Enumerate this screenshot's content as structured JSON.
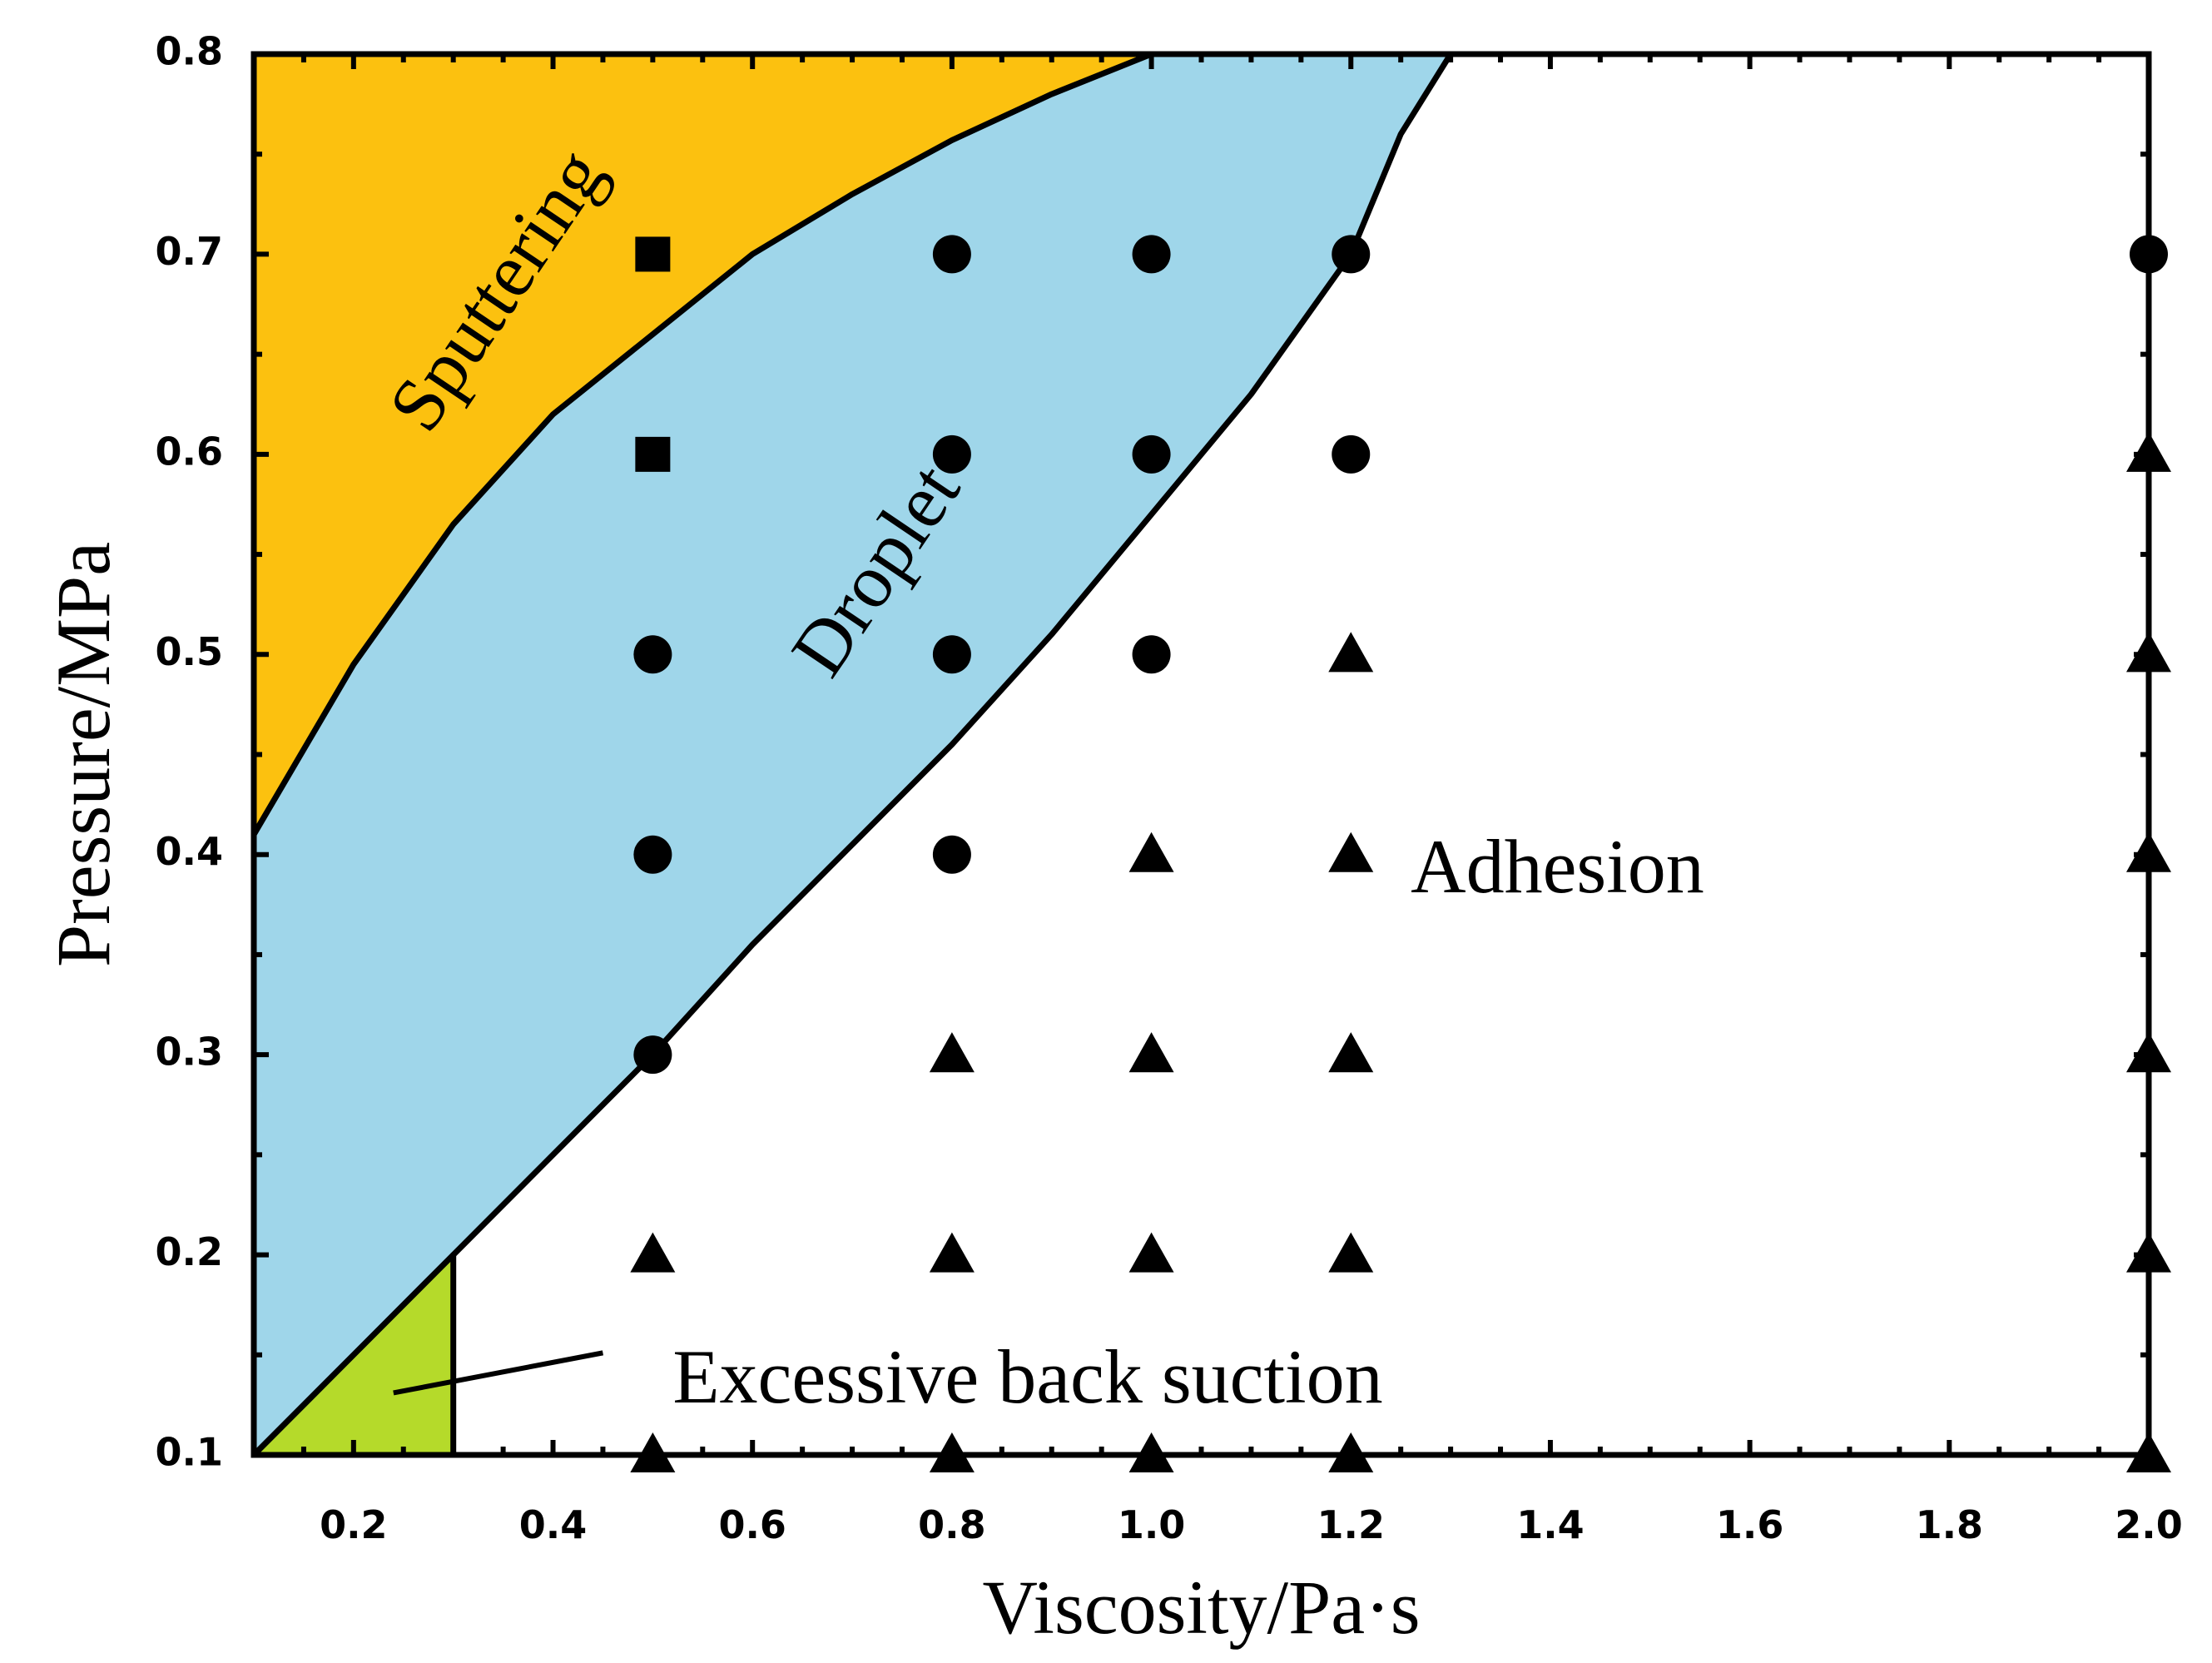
{
  "chart_data": {
    "type": "scatter",
    "title": "",
    "xlabel": "Viscosity/Pa·s",
    "ylabel": "Pressure/MPa",
    "xlim": [
      0.1,
      2.0
    ],
    "ylim": [
      0.1,
      0.8
    ],
    "x_ticks": [
      {
        "value": 0.2,
        "label": "0.2"
      },
      {
        "value": 0.4,
        "label": "0.4"
      },
      {
        "value": 0.6,
        "label": "0.6"
      },
      {
        "value": 0.8,
        "label": "0.8"
      },
      {
        "value": 1.0,
        "label": "1.0"
      },
      {
        "value": 1.2,
        "label": "1.2"
      },
      {
        "value": 1.4,
        "label": "1.4"
      },
      {
        "value": 1.6,
        "label": "1.6"
      },
      {
        "value": 1.8,
        "label": "1.8"
      },
      {
        "value": 2.0,
        "label": "2.0"
      }
    ],
    "y_ticks": [
      {
        "value": 0.1,
        "label": "0.1"
      },
      {
        "value": 0.2,
        "label": "0.2"
      },
      {
        "value": 0.3,
        "label": "0.3"
      },
      {
        "value": 0.4,
        "label": "0.4"
      },
      {
        "value": 0.5,
        "label": "0.5"
      },
      {
        "value": 0.6,
        "label": "0.6"
      },
      {
        "value": 0.7,
        "label": "0.7"
      },
      {
        "value": 0.8,
        "label": "0.8"
      }
    ],
    "regions": [
      {
        "name": "Sputtering",
        "label": "Sputtering",
        "color": "#FCC10F",
        "polygon": [
          [
            0.1,
            0.8
          ],
          [
            0.1,
            0.41
          ],
          [
            0.2,
            0.495
          ],
          [
            0.3,
            0.565
          ],
          [
            0.4,
            0.62
          ],
          [
            0.5,
            0.66
          ],
          [
            0.6,
            0.7
          ],
          [
            0.7,
            0.73
          ],
          [
            0.8,
            0.757
          ],
          [
            0.9,
            0.78
          ],
          [
            1.0,
            0.8
          ]
        ]
      },
      {
        "name": "Droplet",
        "label": "Droplet",
        "color": "#9FD6EA",
        "polygon": [
          [
            0.1,
            0.41
          ],
          [
            0.2,
            0.495
          ],
          [
            0.3,
            0.565
          ],
          [
            0.4,
            0.62
          ],
          [
            0.5,
            0.66
          ],
          [
            0.6,
            0.7
          ],
          [
            0.7,
            0.73
          ],
          [
            0.8,
            0.757
          ],
          [
            0.9,
            0.78
          ],
          [
            1.0,
            0.8
          ],
          [
            1.3,
            0.8
          ],
          [
            1.25,
            0.76
          ],
          [
            1.2,
            0.7
          ],
          [
            1.1,
            0.63
          ],
          [
            1.0,
            0.57
          ],
          [
            0.9,
            0.51
          ],
          [
            0.8,
            0.455
          ],
          [
            0.7,
            0.405
          ],
          [
            0.6,
            0.355
          ],
          [
            0.5,
            0.3
          ],
          [
            0.4,
            0.25
          ],
          [
            0.3,
            0.2
          ],
          [
            0.2,
            0.15
          ],
          [
            0.1,
            0.1
          ]
        ]
      },
      {
        "name": "Excessive back suction",
        "label": "Excessive back suction",
        "color": "#B5DA2A",
        "polygon": [
          [
            0.1,
            0.1
          ],
          [
            0.3,
            0.2
          ],
          [
            0.3,
            0.1
          ]
        ]
      },
      {
        "name": "Adhesion",
        "label": "Adhesion",
        "color": "#ffffff",
        "polygon": []
      }
    ],
    "boundaries": [
      {
        "name": "sputtering-droplet-boundary",
        "points": [
          [
            0.1,
            0.41
          ],
          [
            0.2,
            0.495
          ],
          [
            0.3,
            0.565
          ],
          [
            0.4,
            0.62
          ],
          [
            0.5,
            0.66
          ],
          [
            0.6,
            0.7
          ],
          [
            0.7,
            0.73
          ],
          [
            0.8,
            0.757
          ],
          [
            0.9,
            0.78
          ],
          [
            1.0,
            0.8
          ]
        ]
      },
      {
        "name": "droplet-adhesion-boundary",
        "points": [
          [
            0.1,
            0.1
          ],
          [
            0.2,
            0.15
          ],
          [
            0.3,
            0.2
          ],
          [
            0.4,
            0.25
          ],
          [
            0.5,
            0.3
          ],
          [
            0.6,
            0.355
          ],
          [
            0.7,
            0.405
          ],
          [
            0.8,
            0.455
          ],
          [
            0.9,
            0.51
          ],
          [
            1.0,
            0.57
          ],
          [
            1.1,
            0.63
          ],
          [
            1.2,
            0.7
          ],
          [
            1.25,
            0.76
          ],
          [
            1.3,
            0.8
          ]
        ]
      },
      {
        "name": "back-suction-boundary",
        "points": [
          [
            0.3,
            0.1
          ],
          [
            0.3,
            0.2
          ]
        ]
      },
      {
        "name": "right-vertical-line",
        "points": [
          [
            2.0,
            0.1
          ],
          [
            2.0,
            0.7
          ]
        ]
      }
    ],
    "series": [
      {
        "name": "Sputtering",
        "marker": "square",
        "points": [
          [
            0.5,
            0.7
          ],
          [
            0.5,
            0.6
          ]
        ]
      },
      {
        "name": "Droplet",
        "marker": "circle",
        "points": [
          [
            0.5,
            0.5
          ],
          [
            0.5,
            0.4
          ],
          [
            0.5,
            0.3
          ],
          [
            0.8,
            0.7
          ],
          [
            0.8,
            0.6
          ],
          [
            0.8,
            0.5
          ],
          [
            0.8,
            0.4
          ],
          [
            1.0,
            0.7
          ],
          [
            1.0,
            0.6
          ],
          [
            1.0,
            0.5
          ],
          [
            1.2,
            0.7
          ],
          [
            1.2,
            0.6
          ],
          [
            2.0,
            0.7
          ]
        ]
      },
      {
        "name": "Adhesion",
        "marker": "triangle",
        "points": [
          [
            0.5,
            0.2
          ],
          [
            0.5,
            0.1
          ],
          [
            0.8,
            0.3
          ],
          [
            0.8,
            0.2
          ],
          [
            0.8,
            0.1
          ],
          [
            1.0,
            0.4
          ],
          [
            1.0,
            0.3
          ],
          [
            1.0,
            0.2
          ],
          [
            1.0,
            0.1
          ],
          [
            1.2,
            0.5
          ],
          [
            1.2,
            0.4
          ],
          [
            1.2,
            0.3
          ],
          [
            1.2,
            0.2
          ],
          [
            1.2,
            0.1
          ],
          [
            2.0,
            0.6
          ],
          [
            2.0,
            0.5
          ],
          [
            2.0,
            0.4
          ],
          [
            2.0,
            0.3
          ],
          [
            2.0,
            0.2
          ],
          [
            2.0,
            0.1
          ]
        ]
      }
    ],
    "annotations": [
      {
        "name": "sputtering-label",
        "text": "Sputtering",
        "x": 0.35,
        "y": 0.68,
        "rotate": -56,
        "anchor": "middle"
      },
      {
        "name": "droplet-label",
        "text": "Droplet",
        "x": 0.73,
        "y": 0.54,
        "rotate": -56,
        "anchor": "middle"
      },
      {
        "name": "adhesion-label",
        "text": "Adhesion",
        "x": 1.26,
        "y": 0.39,
        "rotate": 0,
        "anchor": "start"
      },
      {
        "name": "back-suction-label",
        "text": "Excessive back suction",
        "x": 0.52,
        "y": 0.135,
        "rotate": 0,
        "anchor": "start"
      }
    ],
    "leader_line": {
      "from": [
        0.24,
        0.131
      ],
      "to": [
        0.45,
        0.151
      ]
    },
    "grid": false
  }
}
